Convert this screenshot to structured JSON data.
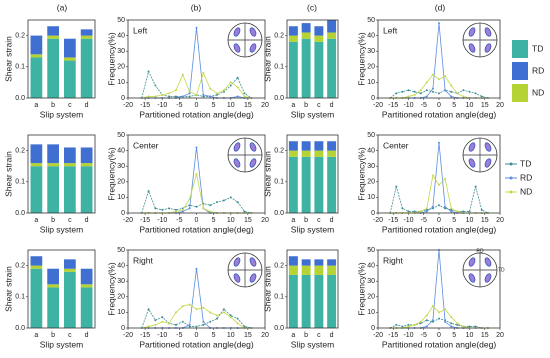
{
  "panel_labels": [
    "(a)",
    "(b)",
    "(c)",
    "(d)"
  ],
  "chart_data": [
    {
      "type": "bar",
      "categories": [
        "a",
        "b",
        "c",
        "d"
      ],
      "xlabel": "Slip system",
      "ylabel": "Shear strain",
      "ylim": [
        0,
        0.25
      ],
      "yticks": [
        {
          "value": 0,
          "label": "0.0"
        },
        0.1,
        0.2
      ],
      "series": [
        {
          "name": "TD",
          "color": "#3fb3a3",
          "values": [
            0.13,
            0.19,
            0.12,
            0.19
          ]
        },
        {
          "name": "RD",
          "color": "#3f6fd1",
          "values": [
            0.06,
            0.03,
            0.06,
            0.02
          ]
        },
        {
          "name": "ND",
          "color": "#b5d334",
          "values": [
            0.01,
            0.01,
            0.01,
            0.01
          ]
        }
      ]
    },
    {
      "type": "line",
      "title": "Left",
      "xlabel": "Partitioned rotation angle(deg)",
      "ylabel": "Frequency(%)",
      "xlim": [
        -20,
        20
      ],
      "xticks": [
        -20,
        -15,
        -10,
        -5,
        0,
        5,
        10,
        15,
        20
      ],
      "ylim": [
        0,
        50
      ],
      "yticks": [
        0,
        10,
        20,
        30,
        40,
        50
      ],
      "x": [
        -16,
        -14,
        -12,
        -10,
        -8,
        -6,
        -4,
        -2,
        0,
        2,
        4,
        6,
        8,
        10,
        12,
        14,
        16
      ],
      "series": [
        {
          "name": "TD",
          "color": "#3d8f94",
          "values": [
            0,
            17,
            8,
            2,
            1,
            1,
            1,
            1,
            2,
            1,
            1,
            2,
            4,
            8,
            13,
            3,
            0
          ]
        },
        {
          "name": "RD",
          "color": "#5b8de0",
          "values": [
            0,
            0,
            0,
            0,
            0,
            0,
            1,
            3,
            45,
            2,
            1,
            0,
            0,
            0,
            1,
            0,
            0
          ]
        },
        {
          "name": "ND",
          "color": "#c5d84a",
          "values": [
            0,
            1,
            1,
            2,
            3,
            5,
            15,
            4,
            2,
            16,
            6,
            3,
            5,
            10,
            7,
            1,
            0
          ]
        }
      ]
    },
    {
      "type": "bar",
      "categories": [
        "a",
        "b",
        "c",
        "d"
      ],
      "xlabel": "Slip system",
      "ylabel": "Shear strain",
      "ylim": [
        0,
        0.25
      ],
      "yticks": [
        {
          "value": 0,
          "label": "0.0"
        },
        0.1,
        0.2
      ],
      "series": [
        {
          "color": "#3fb3a3",
          "values": [
            0.18,
            0.19,
            0.18,
            0.19
          ]
        },
        {
          "color": "#3f6fd1",
          "values": [
            0.03,
            0.03,
            0.03,
            0.04
          ]
        },
        {
          "color": "#b5d334",
          "values": [
            0.02,
            0.02,
            0.02,
            0.02
          ]
        }
      ]
    },
    {
      "type": "line",
      "title": "Left",
      "xlabel": "Partitioned rotation angle(deg)",
      "ylabel": "Frequency(%)",
      "xlim": [
        -20,
        20
      ],
      "xticks": [
        -20,
        -15,
        -10,
        -5,
        0,
        5,
        10,
        15,
        20
      ],
      "ylim": [
        0,
        50
      ],
      "yticks": [
        0,
        10,
        20,
        30,
        40,
        50
      ],
      "x": [
        -16,
        -14,
        -12,
        -10,
        -8,
        -6,
        -4,
        -2,
        0,
        2,
        4,
        6,
        8,
        10,
        12,
        14,
        16
      ],
      "series": [
        {
          "color": "#3d8f94",
          "values": [
            0,
            3,
            4,
            5,
            4,
            3,
            5,
            4,
            3,
            5,
            4,
            3,
            5,
            4,
            3,
            1,
            0
          ]
        },
        {
          "color": "#5b8de0",
          "values": [
            0,
            0,
            0,
            0,
            0,
            0,
            1,
            6,
            48,
            5,
            1,
            0,
            0,
            0,
            0,
            0,
            0
          ]
        },
        {
          "color": "#c5d84a",
          "values": [
            0,
            0,
            0,
            1,
            2,
            5,
            10,
            15,
            12,
            14,
            8,
            3,
            1,
            0,
            0,
            0,
            0
          ]
        }
      ]
    },
    {
      "type": "bar",
      "categories": [
        "a",
        "b",
        "c",
        "d"
      ],
      "xlabel": "Slip system",
      "ylabel": "Shear strain",
      "ylim": [
        0,
        0.25
      ],
      "yticks": [
        {
          "value": 0,
          "label": "0.0"
        },
        0.1,
        0.2
      ],
      "series": [
        {
          "color": "#3fb3a3",
          "values": [
            0.15,
            0.15,
            0.15,
            0.15
          ]
        },
        {
          "color": "#3f6fd1",
          "values": [
            0.06,
            0.06,
            0.05,
            0.05
          ]
        },
        {
          "color": "#b5d334",
          "values": [
            0.01,
            0.01,
            0.01,
            0.01
          ]
        }
      ]
    },
    {
      "type": "line",
      "title": "Center",
      "xlabel": "Partitioned rotation angle(deg)",
      "ylabel": "Frequency(%)",
      "xlim": [
        -20,
        20
      ],
      "xticks": [
        -20,
        -15,
        -10,
        -5,
        0,
        5,
        10,
        15,
        20
      ],
      "ylim": [
        0,
        50
      ],
      "yticks": [
        0,
        10,
        20,
        30,
        40,
        50
      ],
      "x": [
        -16,
        -14,
        -12,
        -10,
        -8,
        -6,
        -4,
        -2,
        0,
        2,
        4,
        6,
        8,
        10,
        12,
        14,
        16
      ],
      "series": [
        {
          "color": "#3d8f94",
          "values": [
            0,
            14,
            3,
            2,
            3,
            2,
            3,
            5,
            4,
            6,
            5,
            7,
            8,
            10,
            7,
            1,
            0
          ]
        },
        {
          "color": "#5b8de0",
          "values": [
            0,
            0,
            0,
            0,
            0,
            0,
            1,
            3,
            42,
            3,
            0,
            0,
            0,
            0,
            0,
            0,
            0
          ]
        },
        {
          "color": "#c5d84a",
          "values": [
            0,
            0,
            0,
            0,
            0,
            1,
            2,
            9,
            25,
            3,
            1,
            0,
            0,
            0,
            0,
            0,
            0
          ]
        }
      ]
    },
    {
      "type": "bar",
      "categories": [
        "a",
        "b",
        "c",
        "d"
      ],
      "xlabel": "Slip system",
      "ylabel": "Shear strain",
      "ylim": [
        0,
        0.25
      ],
      "yticks": [
        {
          "value": 0,
          "label": "0.0"
        },
        0.1,
        0.2
      ],
      "series": [
        {
          "color": "#3fb3a3",
          "values": [
            0.18,
            0.18,
            0.18,
            0.18
          ]
        },
        {
          "color": "#3f6fd1",
          "values": [
            0.03,
            0.03,
            0.03,
            0.03
          ]
        },
        {
          "color": "#b5d334",
          "values": [
            0.02,
            0.02,
            0.02,
            0.02
          ]
        }
      ]
    },
    {
      "type": "line",
      "title": "Center",
      "xlabel": "Partitioned rotation angle(deg)",
      "ylabel": "Frequency(%)",
      "xlim": [
        -20,
        20
      ],
      "xticks": [
        -20,
        -15,
        -10,
        -5,
        0,
        5,
        10,
        15,
        20
      ],
      "ylim": [
        0,
        50
      ],
      "yticks": [
        0,
        10,
        20,
        30,
        40,
        50
      ],
      "x": [
        -16,
        -14,
        -12,
        -10,
        -8,
        -6,
        -4,
        -2,
        0,
        2,
        4,
        6,
        8,
        10,
        12,
        14,
        16
      ],
      "series": [
        {
          "color": "#3d8f94",
          "values": [
            0,
            17,
            3,
            1,
            1,
            1,
            2,
            3,
            5,
            3,
            2,
            1,
            1,
            1,
            17,
            2,
            0
          ]
        },
        {
          "color": "#5b8de0",
          "values": [
            0,
            0,
            0,
            0,
            0,
            0,
            1,
            4,
            45,
            4,
            1,
            0,
            0,
            0,
            0,
            0,
            0
          ]
        },
        {
          "color": "#c5d84a",
          "values": [
            0,
            0,
            0,
            0,
            0,
            1,
            3,
            24,
            18,
            22,
            3,
            1,
            0,
            0,
            0,
            0,
            0
          ]
        }
      ]
    },
    {
      "type": "bar",
      "categories": [
        "a",
        "b",
        "c",
        "d"
      ],
      "xlabel": "Slip system",
      "ylabel": "Shear strain",
      "ylim": [
        0,
        0.25
      ],
      "yticks": [
        {
          "value": 0,
          "label": "0.0"
        },
        0.1,
        0.2
      ],
      "series": [
        {
          "color": "#3fb3a3",
          "values": [
            0.19,
            0.13,
            0.18,
            0.13
          ]
        },
        {
          "color": "#3f6fd1",
          "values": [
            0.03,
            0.05,
            0.03,
            0.05
          ]
        },
        {
          "color": "#b5d334",
          "values": [
            0.01,
            0.01,
            0.01,
            0.01
          ]
        }
      ]
    },
    {
      "type": "line",
      "title": "Right",
      "xlabel": "Partitioned rotation angle(deg)",
      "ylabel": "Frequency(%)",
      "xlim": [
        -20,
        20
      ],
      "xticks": [
        -20,
        -15,
        -10,
        -5,
        0,
        5,
        10,
        15,
        20
      ],
      "ylim": [
        0,
        50
      ],
      "yticks": [
        0,
        10,
        20,
        30,
        40,
        50
      ],
      "x": [
        -16,
        -14,
        -12,
        -10,
        -8,
        -6,
        -4,
        -2,
        0,
        2,
        4,
        6,
        8,
        10,
        12,
        14,
        16
      ],
      "series": [
        {
          "color": "#3d8f94",
          "values": [
            0,
            12,
            5,
            7,
            3,
            2,
            4,
            1,
            1,
            2,
            4,
            6,
            12,
            8,
            6,
            1,
            0
          ]
        },
        {
          "color": "#5b8de0",
          "values": [
            0,
            0,
            0,
            0,
            0,
            0,
            0,
            2,
            38,
            4,
            0,
            0,
            0,
            0,
            0,
            0,
            0
          ]
        },
        {
          "color": "#c5d84a",
          "values": [
            0,
            1,
            2,
            4,
            3,
            10,
            14,
            15,
            12,
            13,
            10,
            8,
            10,
            7,
            3,
            0,
            0
          ]
        }
      ]
    },
    {
      "type": "bar",
      "categories": [
        "a",
        "b",
        "c",
        "d"
      ],
      "xlabel": "Slip system",
      "ylabel": "Shear strain",
      "ylim": [
        0,
        0.25
      ],
      "yticks": [
        {
          "value": 0,
          "label": "0.0"
        },
        0.1,
        0.2
      ],
      "series": [
        {
          "color": "#3fb3a3",
          "values": [
            0.17,
            0.17,
            0.17,
            0.17
          ]
        },
        {
          "color": "#3f6fd1",
          "values": [
            0.03,
            0.02,
            0.02,
            0.02
          ]
        },
        {
          "color": "#b5d334",
          "values": [
            0.03,
            0.03,
            0.03,
            0.03
          ]
        }
      ]
    },
    {
      "type": "line",
      "title": "Right",
      "annotations": [
        "RD",
        "TD"
      ],
      "xlabel": "Partitioned rotation angle(deg)",
      "ylabel": "Frequency(%)",
      "xlim": [
        -20,
        20
      ],
      "xticks": [
        -20,
        -15,
        -10,
        -5,
        0,
        5,
        10,
        15,
        20
      ],
      "ylim": [
        0,
        50
      ],
      "yticks": [
        0,
        10,
        20,
        30,
        40,
        50
      ],
      "x": [
        -16,
        -14,
        -12,
        -10,
        -8,
        -6,
        -4,
        -2,
        0,
        2,
        4,
        6,
        8,
        10,
        12,
        14,
        16
      ],
      "series": [
        {
          "color": "#3d8f94",
          "values": [
            0,
            2,
            1,
            2,
            2,
            3,
            5,
            4,
            6,
            5,
            3,
            2,
            1,
            1,
            1,
            0,
            0
          ]
        },
        {
          "color": "#5b8de0",
          "values": [
            0,
            0,
            0,
            0,
            0,
            0,
            1,
            5,
            50,
            4,
            1,
            0,
            0,
            0,
            0,
            0,
            0
          ]
        },
        {
          "color": "#c5d84a",
          "values": [
            0,
            0,
            0,
            1,
            2,
            4,
            8,
            14,
            10,
            12,
            7,
            3,
            1,
            0,
            0,
            0,
            0
          ]
        }
      ]
    }
  ]
}
